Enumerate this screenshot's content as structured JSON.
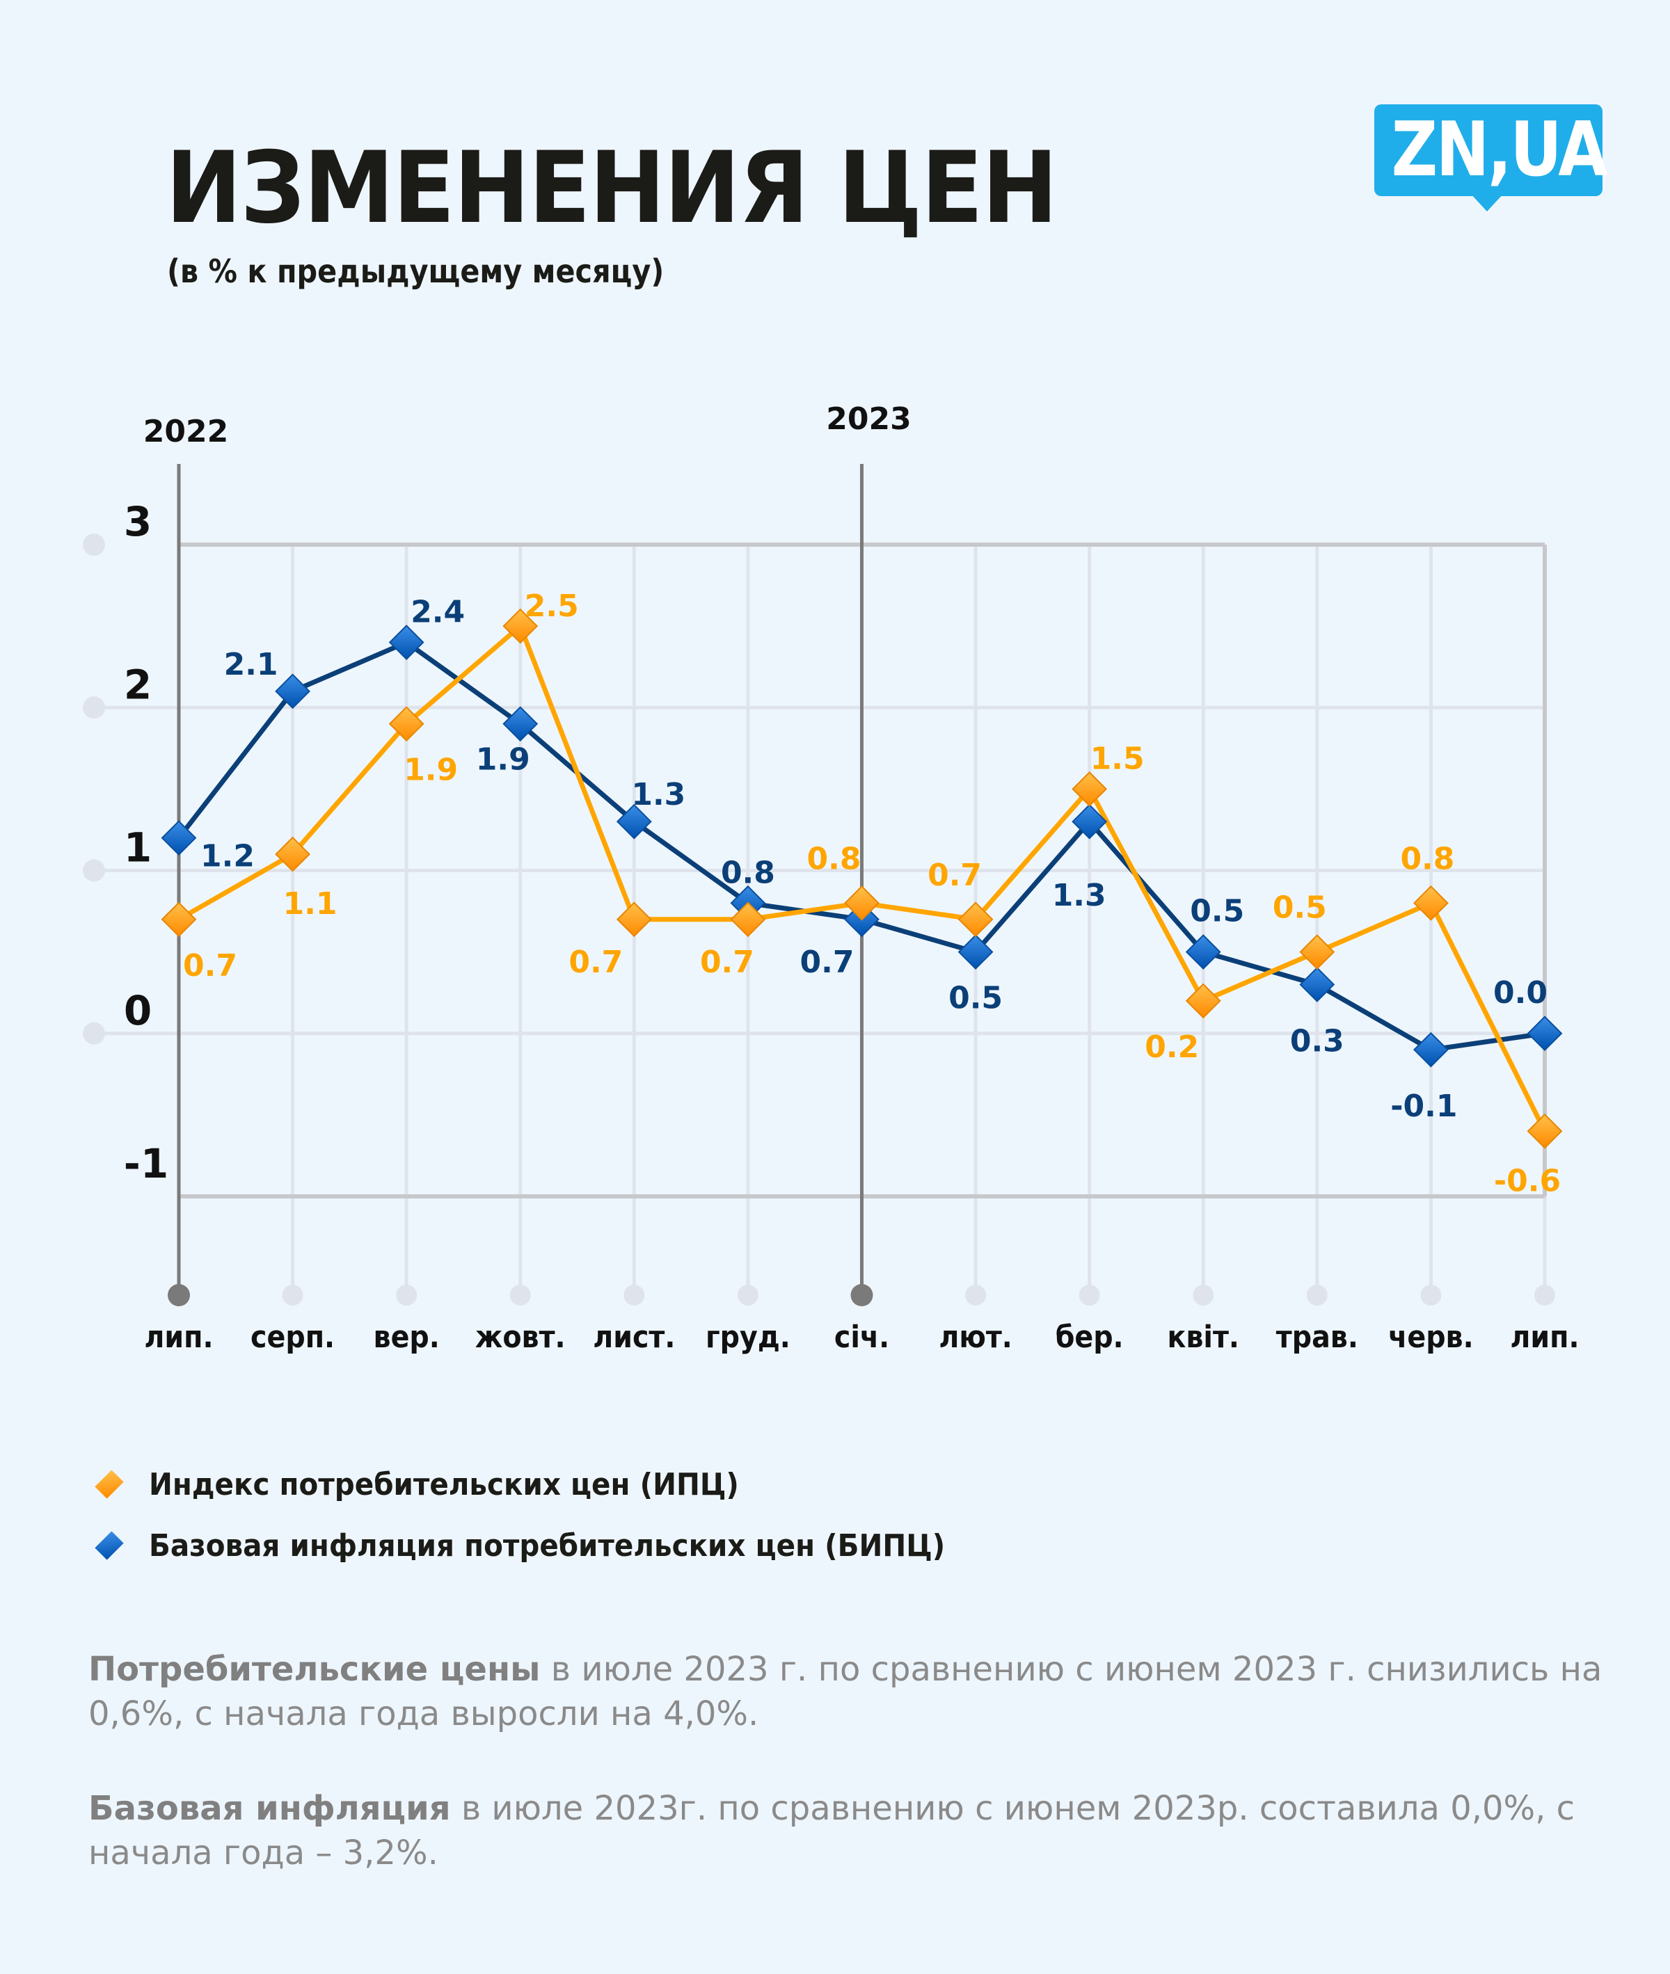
{
  "header": {
    "title": "ИЗМЕНЕНИЯ ЦЕН",
    "subtitle": "(в % к предыдущему месяцу)",
    "logo_text": "ZN,UA",
    "logo_color": "#20aeea"
  },
  "chart_data": {
    "type": "line",
    "title": "ИЗМЕНЕНИЯ ЦЕН",
    "subtitle": "(в % к предыдущему месяцу)",
    "xlabel": "",
    "ylabel": "",
    "categories": [
      "лип.",
      "серп.",
      "вер.",
      "жовт.",
      "лист.",
      "груд.",
      "січ.",
      "лют.",
      "бер.",
      "квіт.",
      "трав.",
      "черв.",
      "лип."
    ],
    "year_markers": [
      {
        "label": "2022",
        "category_index": 0
      },
      {
        "label": "2023",
        "category_index": 6
      }
    ],
    "ylim": [
      -1,
      3
    ],
    "yticks": [
      3,
      2,
      1,
      0,
      -1
    ],
    "grid": true,
    "series": [
      {
        "name": "Индекс потребительских цен (ИПЦ)",
        "color": "#ffa500",
        "marker": "diamond",
        "values": [
          0.7,
          1.1,
          1.9,
          2.5,
          0.7,
          0.7,
          0.8,
          0.7,
          1.5,
          0.2,
          0.5,
          0.8,
          -0.6
        ],
        "labels": [
          "0.7",
          "1.1",
          "1.9",
          "2.5",
          "0.7",
          "0.7",
          "0.8",
          "0.7",
          "1.5",
          "0.2",
          "0.5",
          "0.8",
          "-0.6"
        ]
      },
      {
        "name": "Базовая инфляция потребительских цен (БИПЦ)",
        "color": "#0b3f78",
        "marker": "diamond",
        "values": [
          1.2,
          2.1,
          2.4,
          1.9,
          1.3,
          0.8,
          0.7,
          0.5,
          1.3,
          0.5,
          0.3,
          -0.1,
          0.0
        ],
        "labels": [
          "1.2",
          "2.1",
          "2.4",
          "1.9",
          "1.3",
          "0.8",
          "0.7",
          "0.5",
          "1.3",
          "0.5",
          "0.3",
          "-0.1",
          "0.0"
        ]
      }
    ],
    "legend_position": "bottom-left"
  },
  "legend": [
    {
      "label": "Индекс потребительских цен (ИПЦ)",
      "color": "#ff9a00"
    },
    {
      "label": "Базовая инфляция потребительских цен (БИПЦ)",
      "color": "#0f66c4"
    }
  ],
  "notes": [
    {
      "bold": "Потребительские цены",
      "text": " в июле 2023 г. по сравнению с июнем 2023 г. снизились на 0,6%, с начала года выросли на 4,0%."
    },
    {
      "bold": "Базовая инфляция",
      "text": " в июле 2023г. по сравнению с июнем  2023р. составила 0,0%, с начала года – 3,2%."
    }
  ]
}
